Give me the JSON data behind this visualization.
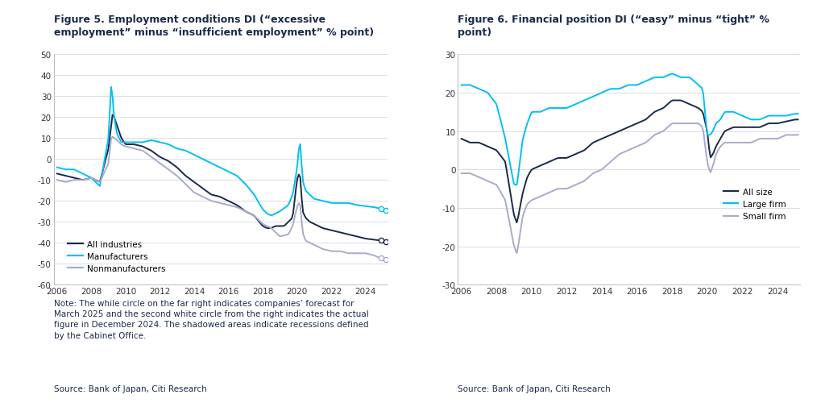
{
  "fig5_title": "Figure 5. Employment conditions DI (“excessive\nemployment” minus “insufficient employment” % point)",
  "fig6_title": "Figure 6. Financial position DI (“easy” minus “tight” %\npoint)",
  "note_text": "Note: The while circle on the far right indicates companies’ forecast for\nMarch 2025 and the second white circle from the right indicates the actual\nfigure in December 2024. The shadowed areas indicate recessions defined\nby the Cabinet Office.",
  "source_left": "Source: Bank of Japan, Citi Research",
  "source_right": "Source: Bank of Japan, Citi Research",
  "color_dark_navy": "#1a2a4a",
  "color_cyan": "#00c0f0",
  "color_light_gray": "#aaaacc",
  "background_color": "#ffffff",
  "chart_bg": "#ffffff",
  "grid_color": "#d8dce8",
  "fig5_ylim": [
    -60,
    50
  ],
  "fig5_yticks": [
    -60,
    -50,
    -40,
    -30,
    -20,
    -10,
    0,
    10,
    20,
    30,
    40,
    50
  ],
  "fig6_ylim": [
    -30,
    30
  ],
  "fig6_yticks": [
    -30,
    -20,
    -10,
    0,
    10,
    20,
    30
  ],
  "xmin": 2006,
  "xmax": 2025.3,
  "xticks": [
    2006,
    2008,
    2010,
    2012,
    2014,
    2016,
    2018,
    2020,
    2022,
    2024
  ]
}
